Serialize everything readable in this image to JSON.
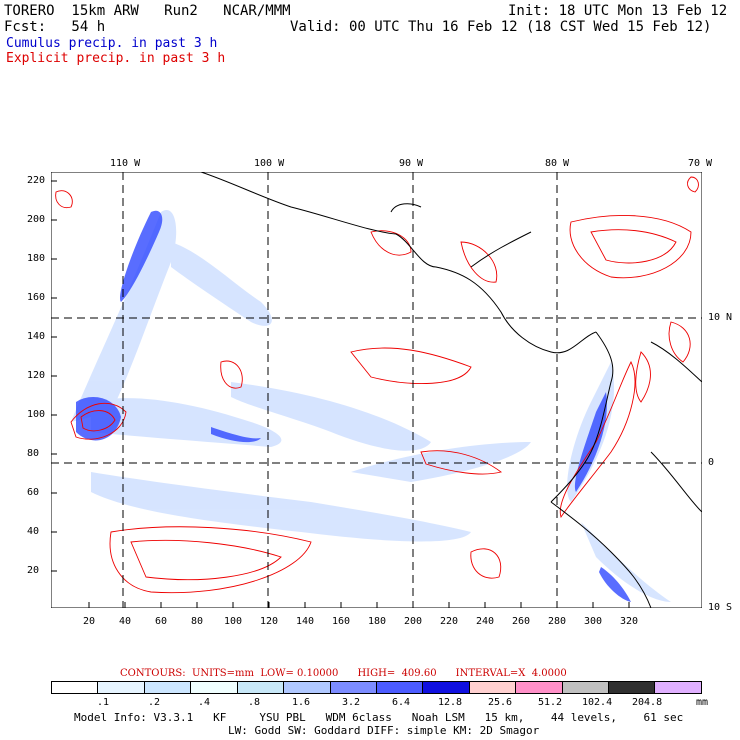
{
  "header": {
    "model": "TORERO  15km ARW   Run2   NCAR/MMM",
    "init": "Init: 18 UTC Mon 13 Feb 12",
    "fcst": "Fcst:   54 h",
    "valid": "Valid: 00 UTC Thu 16 Feb 12 (18 CST Wed 15 Feb 12)",
    "field1": "Cumulus precip. in past 3 h",
    "field2": "Explicit precip. in past 3 h"
  },
  "colors": {
    "field1": "#0000cc",
    "field2": "#dd0000",
    "contour": "#ee0000",
    "coast": "#000000"
  },
  "map": {
    "top_lon_labels": [
      "110 W",
      "100 W",
      "90 W",
      "80 W",
      "70 W"
    ],
    "right_lat_labels": [
      "10 N",
      "0",
      "10 S"
    ],
    "y_ticks": [
      "220",
      "200",
      "180",
      "160",
      "140",
      "120",
      "100",
      "80",
      "60",
      "40",
      "20"
    ],
    "x_ticks": [
      "20",
      "40",
      "60",
      "80",
      "100",
      "120",
      "140",
      "160",
      "180",
      "200",
      "220",
      "240",
      "260",
      "280",
      "300",
      "320"
    ]
  },
  "legend": {
    "contours_line": "CONTOURS:  UNITS=mm  LOW= 0.10000      HIGH=  409.60      INTERVAL=X  4.0000",
    "colors": [
      "#ffffff",
      "#e6f4ff",
      "#cce6ff",
      "#f0ffff",
      "#c8e8f8",
      "#b0c8ff",
      "#7c8cff",
      "#4c5cff",
      "#1010e0",
      "#ffd0d0",
      "#ff90c8",
      "#c0c0c0",
      "#303030",
      "#e0b0ff"
    ],
    "labels": [
      ".1",
      ".2",
      ".4",
      ".8",
      "1.6",
      "3.2",
      "6.4",
      "12.8",
      "25.6",
      "51.2",
      "102.4",
      "204.8"
    ],
    "unit": "mm"
  },
  "footer": {
    "line1": "Model Info: V3.3.1   KF     YSU PBL   WDM 6class   Noah LSM   15 km,    44 levels,    61 sec",
    "line2": "LW: Godd SW: Goddard DIFF: simple KM: 2D Smagor"
  }
}
